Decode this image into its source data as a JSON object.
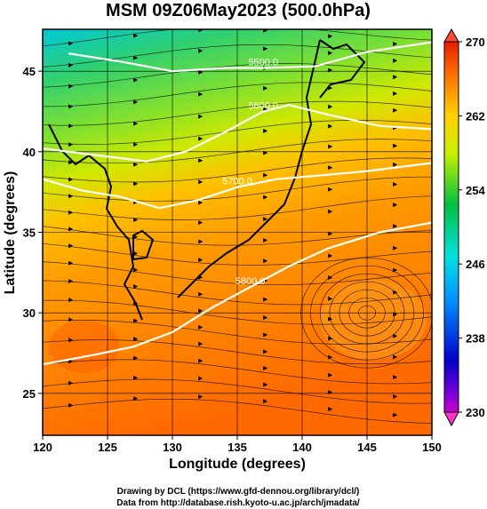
{
  "chart_data": {
    "type": "heatmap",
    "title": "MSM 09Z06May2023 (500.0hPa)",
    "xlabel": "Longitude (degrees)",
    "ylabel": "Latitude  (degrees)",
    "xlim": [
      120,
      150
    ],
    "ylim": [
      22.4,
      47.6
    ],
    "x_ticks": [
      "120",
      "125",
      "130",
      "135",
      "140",
      "145",
      "150"
    ],
    "y_ticks": [
      "25",
      "30",
      "35",
      "40",
      "45"
    ],
    "colorbar": {
      "range": [
        230,
        270
      ],
      "ticks": [
        "230",
        "238",
        "246",
        "254",
        "262",
        "270"
      ]
    },
    "contours": [
      {
        "label": "5500.0",
        "points": [
          [
            122,
            46.1
          ],
          [
            126,
            45.6
          ],
          [
            130,
            45.0
          ],
          [
            134,
            45.2
          ],
          [
            137,
            45.2
          ],
          [
            141,
            45.3
          ],
          [
            145,
            46.2
          ],
          [
            150,
            46.8
          ]
        ]
      },
      {
        "label": "5600.0",
        "points": [
          [
            120,
            40.2
          ],
          [
            124,
            39.8
          ],
          [
            128,
            39.4
          ],
          [
            131,
            40.0
          ],
          [
            134,
            41.2
          ],
          [
            137,
            42.5
          ],
          [
            139,
            42.9
          ],
          [
            142,
            42.3
          ],
          [
            146,
            41.6
          ],
          [
            150,
            41.4
          ]
        ]
      },
      {
        "label": "5700.0",
        "points": [
          [
            120,
            38.3
          ],
          [
            123,
            37.6
          ],
          [
            126,
            37.2
          ],
          [
            129,
            36.5
          ],
          [
            132,
            37.0
          ],
          [
            135,
            37.8
          ],
          [
            138,
            38.3
          ],
          [
            141,
            38.5
          ],
          [
            145,
            38.8
          ],
          [
            150,
            39.3
          ]
        ]
      },
      {
        "label": "5800.0",
        "points": [
          [
            120,
            26.8
          ],
          [
            124,
            27.4
          ],
          [
            127,
            27.9
          ],
          [
            130,
            28.8
          ],
          [
            133,
            30.3
          ],
          [
            136,
            31.6
          ],
          [
            139,
            32.9
          ],
          [
            142,
            34.0
          ],
          [
            146,
            35.0
          ],
          [
            150,
            35.6
          ]
        ]
      }
    ]
  },
  "credits": {
    "line1": "Drawing by DCL (https://www.gfd-dennou.org/library/dcl/)",
    "line2": "Data from http://database.rish.kyoto-u.ac.jp/arch/jmadata/"
  }
}
